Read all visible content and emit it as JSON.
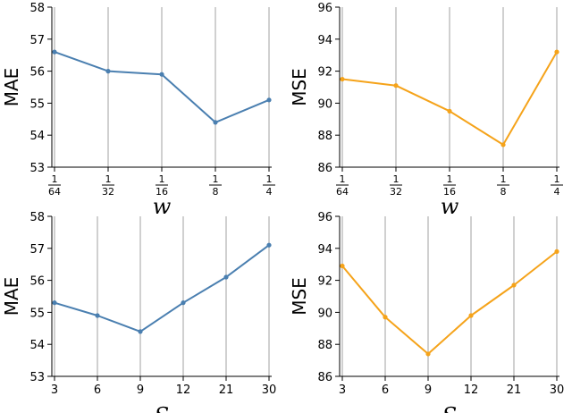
{
  "chart_data": [
    {
      "type": "line",
      "xlabel": "w",
      "ylabel": "MAE",
      "categories": [
        {
          "num": "1",
          "den": "64"
        },
        {
          "num": "1",
          "den": "32"
        },
        {
          "num": "1",
          "den": "16"
        },
        {
          "num": "1",
          "den": "8"
        },
        {
          "num": "1",
          "den": "4"
        }
      ],
      "series": [
        {
          "values": [
            56.6,
            56.0,
            55.9,
            54.4,
            55.1
          ]
        }
      ],
      "ylim": [
        53,
        58
      ],
      "yticks": [
        "53",
        "54",
        "55",
        "56",
        "57",
        "58"
      ],
      "color": "#4a7fb0",
      "grid": "vertical"
    },
    {
      "type": "line",
      "xlabel": "w",
      "ylabel": "MSE",
      "categories": [
        {
          "num": "1",
          "den": "64"
        },
        {
          "num": "1",
          "den": "32"
        },
        {
          "num": "1",
          "den": "16"
        },
        {
          "num": "1",
          "den": "8"
        },
        {
          "num": "1",
          "den": "4"
        }
      ],
      "series": [
        {
          "values": [
            91.5,
            91.1,
            89.5,
            87.4,
            93.2
          ]
        }
      ],
      "ylim": [
        86,
        96
      ],
      "yticks": [
        "86",
        "88",
        "90",
        "92",
        "94",
        "96"
      ],
      "color": "#f5a31a",
      "grid": "vertical"
    },
    {
      "type": "line",
      "xlabel": "S",
      "ylabel": "MAE",
      "categories": [
        "3",
        "6",
        "9",
        "12",
        "21",
        "30"
      ],
      "series": [
        {
          "values": [
            55.3,
            54.9,
            54.4,
            55.3,
            56.1,
            57.1
          ]
        }
      ],
      "ylim": [
        53,
        58
      ],
      "yticks": [
        "53",
        "54",
        "55",
        "56",
        "57",
        "58"
      ],
      "color": "#4a7fb0",
      "grid": "vertical"
    },
    {
      "type": "line",
      "xlabel": "S",
      "ylabel": "MSE",
      "categories": [
        "3",
        "6",
        "9",
        "12",
        "21",
        "30"
      ],
      "series": [
        {
          "values": [
            92.9,
            89.7,
            87.4,
            89.8,
            91.7,
            93.8
          ]
        }
      ],
      "ylim": [
        86,
        96
      ],
      "yticks": [
        "86",
        "88",
        "90",
        "92",
        "94",
        "96"
      ],
      "color": "#f5a31a",
      "grid": "vertical"
    }
  ]
}
